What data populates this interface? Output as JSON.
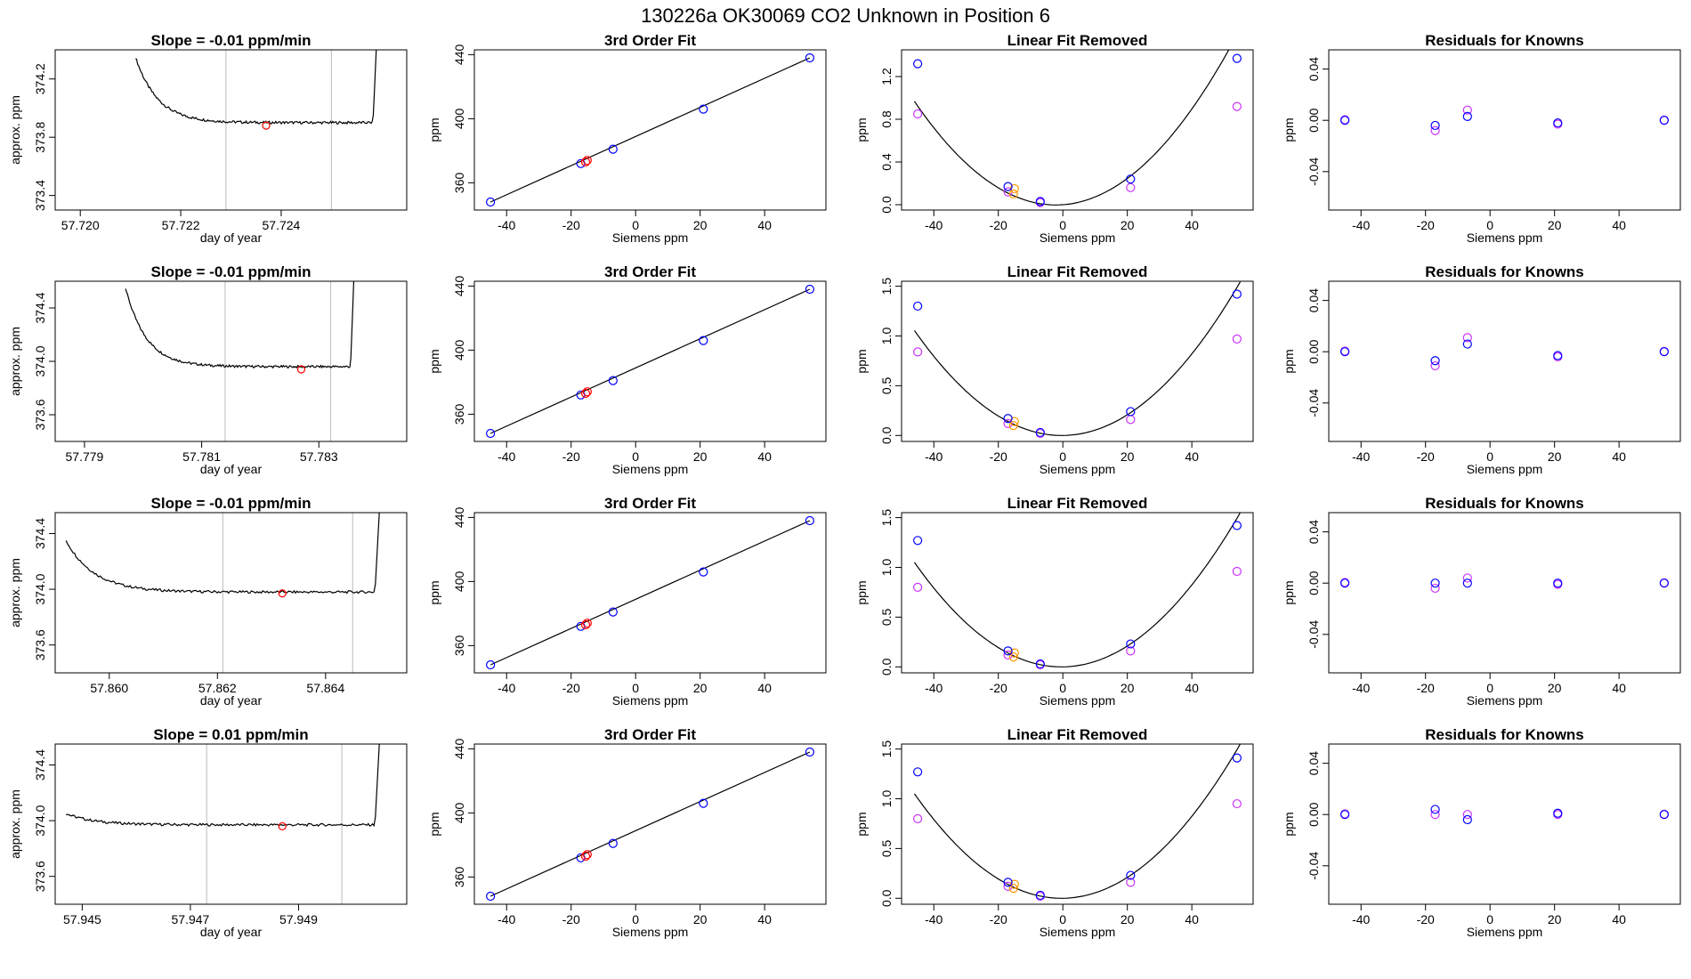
{
  "figure": {
    "title": "130226a     OK30069   CO2 Unknown in Position  6"
  },
  "colors": {
    "trace": "#000000",
    "marker": "#ff0000",
    "fit": "#0000ff",
    "cal": "#cc33ff",
    "ref": "#ff9900",
    "vline": "#bbbbbb"
  },
  "chart_data": [
    {
      "type": "line",
      "row": 0,
      "col": 0,
      "title": "Slope =  -0.01  ppm/min",
      "xlabel": "day of year",
      "ylabel": "approx. ppm",
      "xlim": [
        57.7195,
        57.7265
      ],
      "ylim": [
        373.3,
        374.4
      ],
      "xticks": [
        57.72,
        57.722,
        57.724
      ],
      "xtick_labels": [
        "57.720",
        "57.722",
        "57.724"
      ],
      "yticks": [
        373.4,
        373.8,
        374.2
      ],
      "ytick_labels": [
        "373.4",
        "373.8",
        "374.2"
      ],
      "vlines": [
        57.7229,
        57.725
      ],
      "trace": {
        "x0": 57.7211,
        "x1": 57.7259,
        "start": 374.35,
        "level": 373.9,
        "end": 374.45
      },
      "marker": {
        "x": 57.7237,
        "y": 373.88
      }
    },
    {
      "type": "scatter",
      "row": 0,
      "col": 1,
      "title": "3rd Order Fit",
      "xlabel": "Siemens ppm",
      "ylabel": "ppm",
      "xlim": [
        -50,
        59
      ],
      "ylim": [
        343,
        443
      ],
      "xticks": [
        -40,
        -20,
        0,
        20,
        40
      ],
      "xtick_labels": [
        "-40",
        "-20",
        "0",
        "20",
        "40"
      ],
      "yticks": [
        360,
        400,
        440
      ],
      "ytick_labels": [
        "360",
        "400",
        "440"
      ],
      "line": [
        [
          -45,
          348
        ],
        [
          54,
          438
        ]
      ],
      "points": [
        {
          "x": -45,
          "y": 348
        },
        {
          "x": -17,
          "y": 372
        },
        {
          "x": -7,
          "y": 381
        },
        {
          "x": 21,
          "y": 406
        },
        {
          "x": 54,
          "y": 438
        }
      ],
      "unknowns": [
        {
          "x": -15,
          "y": 374
        },
        {
          "x": -15.5,
          "y": 373
        }
      ]
    },
    {
      "type": "scatter",
      "row": 0,
      "col": 2,
      "title": "Linear Fit Removed",
      "xlabel": "Siemens ppm",
      "ylabel": "ppm",
      "xlim": [
        -50,
        59
      ],
      "ylim": [
        -0.05,
        1.45
      ],
      "xticks": [
        -40,
        -20,
        0,
        20,
        40
      ],
      "xtick_labels": [
        "-40",
        "-20",
        "0",
        "20",
        "40"
      ],
      "yticks": [
        0.0,
        0.4,
        0.8,
        1.2
      ],
      "ytick_labels": [
        "0.0",
        "0.4",
        "0.8",
        "1.2"
      ],
      "curve": {
        "a": 0.000505,
        "b": 0.0022,
        "c": 0,
        "x0": -46,
        "x1": 54
      },
      "fit_points": [
        {
          "x": -45,
          "y": 1.32
        },
        {
          "x": -17,
          "y": 0.17
        },
        {
          "x": -7,
          "y": 0.03
        },
        {
          "x": 21,
          "y": 0.24
        },
        {
          "x": 54,
          "y": 1.37
        }
      ],
      "cal_points": [
        {
          "x": -45,
          "y": 0.85
        },
        {
          "x": -17,
          "y": 0.12
        },
        {
          "x": -7,
          "y": 0.02
        },
        {
          "x": 21,
          "y": 0.16
        },
        {
          "x": 54,
          "y": 0.92
        }
      ],
      "ref_points": [
        {
          "x": -15,
          "y": 0.15
        },
        {
          "x": -15.3,
          "y": 0.1
        }
      ]
    },
    {
      "type": "scatter",
      "row": 0,
      "col": 3,
      "title": "Residuals for Knowns",
      "xlabel": "Siemens ppm",
      "ylabel": "ppm",
      "xlim": [
        -50,
        59
      ],
      "ylim": [
        -0.07,
        0.055
      ],
      "xticks": [
        -40,
        -20,
        0,
        20,
        40
      ],
      "xtick_labels": [
        "-40",
        "-20",
        "0",
        "20",
        "40"
      ],
      "yticks": [
        -0.04,
        0.0,
        0.04
      ],
      "ytick_labels": [
        "-0.04",
        "0.00",
        "0.04"
      ],
      "fit_points": [
        {
          "x": -45,
          "y": 0.0
        },
        {
          "x": -17,
          "y": -0.004
        },
        {
          "x": -7,
          "y": 0.003
        },
        {
          "x": 21,
          "y": -0.002
        },
        {
          "x": 54,
          "y": 0.0
        }
      ],
      "cal_points": [
        {
          "x": -45,
          "y": 0.0005
        },
        {
          "x": -17,
          "y": -0.008
        },
        {
          "x": -7,
          "y": 0.008
        },
        {
          "x": 21,
          "y": -0.003
        },
        {
          "x": 54,
          "y": 0.0002
        }
      ]
    },
    {
      "type": "line",
      "row": 1,
      "col": 0,
      "title": "Slope =  -0.01  ppm/min",
      "xlabel": "day of year",
      "ylabel": "approx. ppm",
      "xlim": [
        57.7785,
        57.7845
      ],
      "ylim": [
        373.4,
        374.6
      ],
      "xticks": [
        57.779,
        57.781,
        57.783
      ],
      "xtick_labels": [
        "57.779",
        "57.781",
        "57.783"
      ],
      "yticks": [
        373.6,
        374.0,
        374.4
      ],
      "ytick_labels": [
        "373.6",
        "374.0",
        "374.4"
      ],
      "vlines": [
        57.7814,
        57.7832
      ],
      "trace": {
        "x0": 57.7797,
        "x1": 57.7836,
        "start": 374.55,
        "level": 373.96,
        "end": 374.65
      },
      "marker": {
        "x": 57.7827,
        "y": 373.94
      }
    },
    {
      "type": "scatter",
      "row": 1,
      "col": 1,
      "title": "3rd Order Fit",
      "xlabel": "Siemens ppm",
      "ylabel": "ppm",
      "xlim": [
        -50,
        59
      ],
      "ylim": [
        343,
        443
      ],
      "xticks": [
        -40,
        -20,
        0,
        20,
        40
      ],
      "xtick_labels": [
        "-40",
        "-20",
        "0",
        "20",
        "40"
      ],
      "yticks": [
        360,
        400,
        440
      ],
      "ytick_labels": [
        "360",
        "400",
        "440"
      ],
      "line": [
        [
          -45,
          348
        ],
        [
          54,
          438
        ]
      ],
      "points": [
        {
          "x": -45,
          "y": 348
        },
        {
          "x": -17,
          "y": 372
        },
        {
          "x": -7,
          "y": 381
        },
        {
          "x": 21,
          "y": 406
        },
        {
          "x": 54,
          "y": 438
        }
      ],
      "unknowns": [
        {
          "x": -15,
          "y": 374
        },
        {
          "x": -15.5,
          "y": 373
        }
      ]
    },
    {
      "type": "scatter",
      "row": 1,
      "col": 2,
      "title": "Linear Fit Removed",
      "xlabel": "Siemens ppm",
      "ylabel": "ppm",
      "xlim": [
        -50,
        59
      ],
      "ylim": [
        -0.06,
        1.55
      ],
      "xticks": [
        -40,
        -20,
        0,
        20,
        40
      ],
      "xtick_labels": [
        "-40",
        "-20",
        "0",
        "20",
        "40"
      ],
      "yticks": [
        0.0,
        0.5,
        1.0,
        1.5
      ],
      "ytick_labels": [
        "0.0",
        "0.5",
        "1.0",
        "1.5"
      ],
      "curve": {
        "a": 0.000505,
        "b": 0.0003,
        "c": 0,
        "x0": -46,
        "x1": 55
      },
      "fit_points": [
        {
          "x": -45,
          "y": 1.3
        },
        {
          "x": -17,
          "y": 0.17
        },
        {
          "x": -7,
          "y": 0.03
        },
        {
          "x": 21,
          "y": 0.24
        },
        {
          "x": 54,
          "y": 1.42
        }
      ],
      "cal_points": [
        {
          "x": -45,
          "y": 0.84
        },
        {
          "x": -17,
          "y": 0.12
        },
        {
          "x": -7,
          "y": 0.02
        },
        {
          "x": 21,
          "y": 0.16
        },
        {
          "x": 54,
          "y": 0.97
        }
      ],
      "ref_points": [
        {
          "x": -15,
          "y": 0.14
        },
        {
          "x": -15.3,
          "y": 0.1
        }
      ]
    },
    {
      "type": "scatter",
      "row": 1,
      "col": 3,
      "title": "Residuals for Knowns",
      "xlabel": "Siemens ppm",
      "ylabel": "ppm",
      "xlim": [
        -50,
        59
      ],
      "ylim": [
        -0.07,
        0.055
      ],
      "xticks": [
        -40,
        -20,
        0,
        20,
        40
      ],
      "xtick_labels": [
        "-40",
        "-20",
        "0",
        "20",
        "40"
      ],
      "yticks": [
        -0.04,
        0.0,
        0.04
      ],
      "ytick_labels": [
        "-0.04",
        "0.00",
        "0.04"
      ],
      "fit_points": [
        {
          "x": -45,
          "y": 0.0
        },
        {
          "x": -17,
          "y": -0.007
        },
        {
          "x": -7,
          "y": 0.006
        },
        {
          "x": 21,
          "y": -0.003
        },
        {
          "x": 54,
          "y": 0.0
        }
      ],
      "cal_points": [
        {
          "x": -45,
          "y": 0.0005
        },
        {
          "x": -17,
          "y": -0.011
        },
        {
          "x": -7,
          "y": 0.011
        },
        {
          "x": 21,
          "y": -0.004
        },
        {
          "x": 54,
          "y": 0.0002
        }
      ]
    },
    {
      "type": "line",
      "row": 2,
      "col": 0,
      "title": "Slope =  -0.01  ppm/min",
      "xlabel": "day of year",
      "ylabel": "approx. ppm",
      "xlim": [
        57.859,
        57.8655
      ],
      "ylim": [
        373.4,
        374.55
      ],
      "xticks": [
        57.86,
        57.862,
        57.864
      ],
      "xtick_labels": [
        "57.860",
        "57.862",
        "57.864"
      ],
      "yticks": [
        373.6,
        374.0,
        374.4
      ],
      "ytick_labels": [
        "373.6",
        "374.0",
        "374.4"
      ],
      "vlines": [
        57.8621,
        57.8645
      ],
      "trace": {
        "x0": 57.8592,
        "x1": 57.865,
        "start": 374.35,
        "level": 373.98,
        "end": 374.6
      },
      "marker": {
        "x": 57.8632,
        "y": 373.97
      }
    },
    {
      "type": "scatter",
      "row": 2,
      "col": 1,
      "title": "3rd Order Fit",
      "xlabel": "Siemens ppm",
      "ylabel": "ppm",
      "xlim": [
        -50,
        59
      ],
      "ylim": [
        343,
        443
      ],
      "xticks": [
        -40,
        -20,
        0,
        20,
        40
      ],
      "xtick_labels": [
        "-40",
        "-20",
        "0",
        "20",
        "40"
      ],
      "yticks": [
        360,
        400,
        440
      ],
      "ytick_labels": [
        "360",
        "400",
        "440"
      ],
      "line": [
        [
          -45,
          348
        ],
        [
          54,
          438
        ]
      ],
      "points": [
        {
          "x": -45,
          "y": 348
        },
        {
          "x": -17,
          "y": 372
        },
        {
          "x": -7,
          "y": 381
        },
        {
          "x": 21,
          "y": 406
        },
        {
          "x": 54,
          "y": 438
        }
      ],
      "unknowns": [
        {
          "x": -15,
          "y": 374
        },
        {
          "x": -15.5,
          "y": 373
        }
      ]
    },
    {
      "type": "scatter",
      "row": 2,
      "col": 2,
      "title": "Linear Fit Removed",
      "xlabel": "Siemens ppm",
      "ylabel": "ppm",
      "xlim": [
        -50,
        59
      ],
      "ylim": [
        -0.06,
        1.55
      ],
      "xticks": [
        -40,
        -20,
        0,
        20,
        40
      ],
      "xtick_labels": [
        "-40",
        "-20",
        "0",
        "20",
        "40"
      ],
      "yticks": [
        0.0,
        0.5,
        1.0,
        1.5
      ],
      "ytick_labels": [
        "0.0",
        "0.5",
        "1.0",
        "1.5"
      ],
      "curve": {
        "a": 0.000505,
        "b": 0.0004,
        "c": 0,
        "x0": -46,
        "x1": 55
      },
      "fit_points": [
        {
          "x": -45,
          "y": 1.27
        },
        {
          "x": -17,
          "y": 0.16
        },
        {
          "x": -7,
          "y": 0.03
        },
        {
          "x": 21,
          "y": 0.23
        },
        {
          "x": 54,
          "y": 1.42
        }
      ],
      "cal_points": [
        {
          "x": -45,
          "y": 0.8
        },
        {
          "x": -17,
          "y": 0.12
        },
        {
          "x": -7,
          "y": 0.02
        },
        {
          "x": 21,
          "y": 0.16
        },
        {
          "x": 54,
          "y": 0.96
        }
      ],
      "ref_points": [
        {
          "x": -15,
          "y": 0.14
        },
        {
          "x": -15.3,
          "y": 0.1
        }
      ]
    },
    {
      "type": "scatter",
      "row": 2,
      "col": 3,
      "title": "Residuals for Knowns",
      "xlabel": "Siemens ppm",
      "ylabel": "ppm",
      "xlim": [
        -50,
        59
      ],
      "ylim": [
        -0.07,
        0.055
      ],
      "xticks": [
        -40,
        -20,
        0,
        20,
        40
      ],
      "xtick_labels": [
        "-40",
        "-20",
        "0",
        "20",
        "40"
      ],
      "yticks": [
        -0.04,
        0.0,
        0.04
      ],
      "ytick_labels": [
        "-0.04",
        "0.00",
        "0.04"
      ],
      "fit_points": [
        {
          "x": -45,
          "y": 0.0
        },
        {
          "x": -17,
          "y": 0.0
        },
        {
          "x": -7,
          "y": 0.0
        },
        {
          "x": 21,
          "y": 0.0
        },
        {
          "x": 54,
          "y": 0.0
        }
      ],
      "cal_points": [
        {
          "x": -45,
          "y": 0.0005
        },
        {
          "x": -17,
          "y": -0.004
        },
        {
          "x": -7,
          "y": 0.004
        },
        {
          "x": 21,
          "y": -0.001
        },
        {
          "x": 54,
          "y": 0.0002
        }
      ]
    },
    {
      "type": "line",
      "row": 3,
      "col": 0,
      "title": "Slope =  0.01  ppm/min",
      "xlabel": "day of year",
      "ylabel": "approx. ppm",
      "xlim": [
        57.9445,
        57.951
      ],
      "ylim": [
        373.4,
        374.55
      ],
      "xticks": [
        57.945,
        57.947,
        57.949
      ],
      "xtick_labels": [
        "57.945",
        "57.947",
        "57.949"
      ],
      "yticks": [
        373.6,
        374.0,
        374.4
      ],
      "ytick_labels": [
        "373.6",
        "374.0",
        "374.4"
      ],
      "vlines": [
        57.9473,
        57.9498
      ],
      "trace": {
        "x0": 57.9447,
        "x1": 57.9505,
        "start": 374.05,
        "level": 373.97,
        "end": 374.6
      },
      "marker": {
        "x": 57.9487,
        "y": 373.96
      }
    },
    {
      "type": "scatter",
      "row": 3,
      "col": 1,
      "title": "3rd Order Fit",
      "xlabel": "Siemens ppm",
      "ylabel": "ppm",
      "xlim": [
        -50,
        59
      ],
      "ylim": [
        343,
        443
      ],
      "xticks": [
        -40,
        -20,
        0,
        20,
        40
      ],
      "xtick_labels": [
        "-40",
        "-20",
        "0",
        "20",
        "40"
      ],
      "yticks": [
        360,
        400,
        440
      ],
      "ytick_labels": [
        "360",
        "400",
        "440"
      ],
      "line": [
        [
          -45,
          348
        ],
        [
          54,
          438
        ]
      ],
      "points": [
        {
          "x": -45,
          "y": 348
        },
        {
          "x": -17,
          "y": 372
        },
        {
          "x": -7,
          "y": 381
        },
        {
          "x": 21,
          "y": 406
        },
        {
          "x": 54,
          "y": 438
        }
      ],
      "unknowns": [
        {
          "x": -15,
          "y": 374
        },
        {
          "x": -15.5,
          "y": 373
        }
      ]
    },
    {
      "type": "scatter",
      "row": 3,
      "col": 2,
      "title": "Linear Fit Removed",
      "xlabel": "Siemens ppm",
      "ylabel": "ppm",
      "xlim": [
        -50,
        59
      ],
      "ylim": [
        -0.06,
        1.55
      ],
      "xticks": [
        -40,
        -20,
        0,
        20,
        40
      ],
      "xtick_labels": [
        "-40",
        "-20",
        "0",
        "20",
        "40"
      ],
      "yticks": [
        0.0,
        0.5,
        1.0,
        1.5
      ],
      "ytick_labels": [
        "0.0",
        "0.5",
        "1.0",
        "1.5"
      ],
      "curve": {
        "a": 0.000505,
        "b": 0.0004,
        "c": 0,
        "x0": -46,
        "x1": 55
      },
      "fit_points": [
        {
          "x": -45,
          "y": 1.27
        },
        {
          "x": -17,
          "y": 0.16
        },
        {
          "x": -7,
          "y": 0.03
        },
        {
          "x": 21,
          "y": 0.23
        },
        {
          "x": 54,
          "y": 1.41
        }
      ],
      "cal_points": [
        {
          "x": -45,
          "y": 0.8
        },
        {
          "x": -17,
          "y": 0.12
        },
        {
          "x": -7,
          "y": 0.02
        },
        {
          "x": 21,
          "y": 0.16
        },
        {
          "x": 54,
          "y": 0.95
        }
      ],
      "ref_points": [
        {
          "x": -15,
          "y": 0.14
        },
        {
          "x": -15.3,
          "y": 0.1
        }
      ]
    },
    {
      "type": "scatter",
      "row": 3,
      "col": 3,
      "title": "Residuals for Knowns",
      "xlabel": "Siemens ppm",
      "ylabel": "ppm",
      "xlim": [
        -50,
        59
      ],
      "ylim": [
        -0.07,
        0.055
      ],
      "xticks": [
        -40,
        -20,
        0,
        20,
        40
      ],
      "xtick_labels": [
        "-40",
        "-20",
        "0",
        "20",
        "40"
      ],
      "yticks": [
        -0.04,
        0.0,
        0.04
      ],
      "ytick_labels": [
        "-0.04",
        "0.00",
        "0.04"
      ],
      "fit_points": [
        {
          "x": -45,
          "y": 0.0
        },
        {
          "x": -17,
          "y": 0.004
        },
        {
          "x": -7,
          "y": -0.004
        },
        {
          "x": 21,
          "y": 0.001
        },
        {
          "x": 54,
          "y": 0.0
        }
      ],
      "cal_points": [
        {
          "x": -45,
          "y": 0.0005
        },
        {
          "x": -17,
          "y": 0.0
        },
        {
          "x": -7,
          "y": 0.0
        },
        {
          "x": 21,
          "y": 0.0
        },
        {
          "x": 54,
          "y": 0.0002
        }
      ]
    }
  ]
}
